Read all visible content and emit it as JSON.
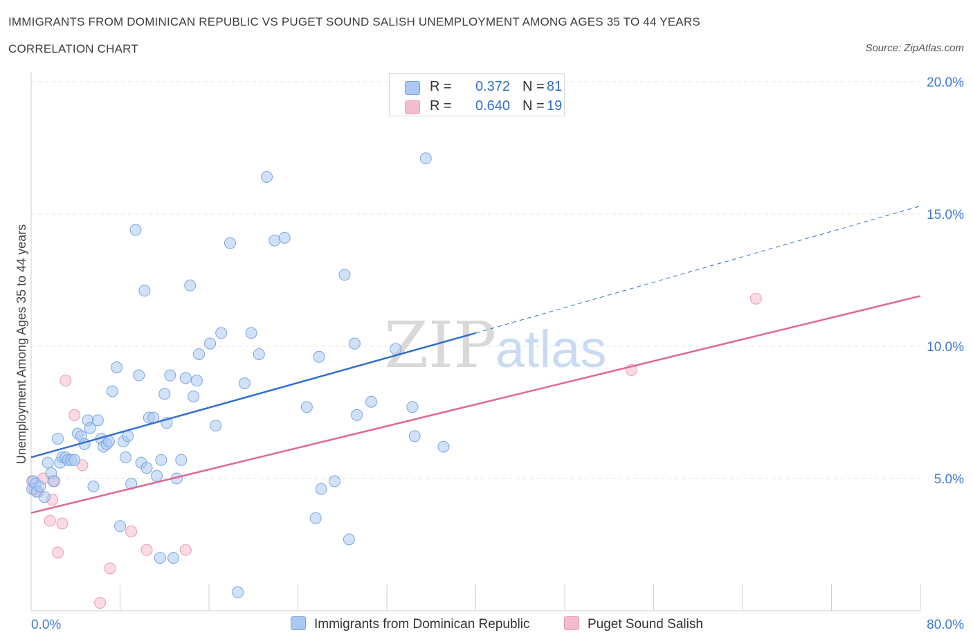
{
  "header": {
    "title": "IMMIGRANTS FROM DOMINICAN REPUBLIC VS PUGET SOUND SALISH UNEMPLOYMENT AMONG AGES 35 TO 44 YEARS",
    "subtitle": "CORRELATION CHART",
    "source": "Source: ZipAtlas.com"
  },
  "legend_top": {
    "rows": [
      {
        "r_label": "R =",
        "r_value": "0.372",
        "n_label": "N =",
        "n_value": "81"
      },
      {
        "r_label": "R =",
        "r_value": "0.640",
        "n_label": "N =",
        "n_value": "19"
      }
    ]
  },
  "legend_bottom": {
    "items": [
      {
        "label": "Immigrants from Dominican Republic"
      },
      {
        "label": "Puget Sound Salish"
      }
    ]
  },
  "watermark": {
    "part1": "ZIP",
    "part2": "atlas"
  },
  "colors": {
    "blue_fill": "#a9c8f2",
    "blue_stroke": "#7aa6e0",
    "blue_line": "#2f6fd0",
    "pink_fill": "#f5bcd0",
    "pink_stroke": "#ea9ab6",
    "pink_line": "#e06891",
    "grid": "#e0e0e0",
    "axis_text": "#3b78d0"
  },
  "chart_data": {
    "type": "scatter",
    "title": "IMMIGRANTS FROM DOMINICAN REPUBLIC VS PUGET SOUND SALISH UNEMPLOYMENT AMONG AGES 35 TO 44 YEARS",
    "xlabel": "",
    "ylabel": "Unemployment Among Ages 35 to 44 years",
    "xlim": [
      0,
      80
    ],
    "ylim": [
      0,
      20
    ],
    "x_tick_labels": [
      "0.0%",
      "80.0%"
    ],
    "y_ticks": [
      5,
      10,
      15,
      20
    ],
    "y_tick_labels": [
      "5.0%",
      "10.0%",
      "15.0%",
      "20.0%"
    ],
    "grid": true,
    "legend_placement": "top-center",
    "series": [
      {
        "name": "Immigrants from Dominican Republic",
        "color": "#a9c8f2",
        "points": [
          [
            0.1,
            4.6
          ],
          [
            0.2,
            4.9
          ],
          [
            0.4,
            4.8
          ],
          [
            0.5,
            4.5
          ],
          [
            0.8,
            4.7
          ],
          [
            1.2,
            4.3
          ],
          [
            1.5,
            5.6
          ],
          [
            1.8,
            5.2
          ],
          [
            2.0,
            4.9
          ],
          [
            2.4,
            6.5
          ],
          [
            2.6,
            5.6
          ],
          [
            2.8,
            5.8
          ],
          [
            3.1,
            5.8
          ],
          [
            3.3,
            5.7
          ],
          [
            3.6,
            5.7
          ],
          [
            3.9,
            5.7
          ],
          [
            4.2,
            6.7
          ],
          [
            4.5,
            6.6
          ],
          [
            4.8,
            6.3
          ],
          [
            5.1,
            7.2
          ],
          [
            5.3,
            6.9
          ],
          [
            5.6,
            4.7
          ],
          [
            6.0,
            7.2
          ],
          [
            6.3,
            6.5
          ],
          [
            6.5,
            6.2
          ],
          [
            6.8,
            6.3
          ],
          [
            7.0,
            6.4
          ],
          [
            7.3,
            8.3
          ],
          [
            7.7,
            9.2
          ],
          [
            8.0,
            3.2
          ],
          [
            8.3,
            6.4
          ],
          [
            8.5,
            5.8
          ],
          [
            8.7,
            6.6
          ],
          [
            9.0,
            4.8
          ],
          [
            9.4,
            14.4
          ],
          [
            9.7,
            8.9
          ],
          [
            9.9,
            5.6
          ],
          [
            10.2,
            12.1
          ],
          [
            10.4,
            5.4
          ],
          [
            10.6,
            7.3
          ],
          [
            11.0,
            7.3
          ],
          [
            11.3,
            5.1
          ],
          [
            11.6,
            2.0
          ],
          [
            11.7,
            5.7
          ],
          [
            12.0,
            8.2
          ],
          [
            12.2,
            7.1
          ],
          [
            12.5,
            8.9
          ],
          [
            12.8,
            2.0
          ],
          [
            13.1,
            5.0
          ],
          [
            13.5,
            5.7
          ],
          [
            13.9,
            8.8
          ],
          [
            14.3,
            12.3
          ],
          [
            14.6,
            8.1
          ],
          [
            14.9,
            8.7
          ],
          [
            15.1,
            9.7
          ],
          [
            16.1,
            10.1
          ],
          [
            16.6,
            7.0
          ],
          [
            17.1,
            10.5
          ],
          [
            17.9,
            13.9
          ],
          [
            18.6,
            0.7
          ],
          [
            19.2,
            8.6
          ],
          [
            19.8,
            10.5
          ],
          [
            20.5,
            9.7
          ],
          [
            21.2,
            16.4
          ],
          [
            21.9,
            14.0
          ],
          [
            22.8,
            14.1
          ],
          [
            24.8,
            7.7
          ],
          [
            25.6,
            3.5
          ],
          [
            25.9,
            9.6
          ],
          [
            26.1,
            4.6
          ],
          [
            27.3,
            4.9
          ],
          [
            28.2,
            12.7
          ],
          [
            28.6,
            2.7
          ],
          [
            29.1,
            10.1
          ],
          [
            29.3,
            7.4
          ],
          [
            30.6,
            7.9
          ],
          [
            32.8,
            9.9
          ],
          [
            34.3,
            7.7
          ],
          [
            34.5,
            6.6
          ],
          [
            35.5,
            17.1
          ],
          [
            37.1,
            6.2
          ]
        ]
      },
      {
        "name": "Puget Sound Salish",
        "color": "#f5bcd0",
        "points": [
          [
            0.1,
            4.9
          ],
          [
            0.6,
            4.5
          ],
          [
            1.1,
            5.0
          ],
          [
            1.7,
            3.4
          ],
          [
            1.9,
            4.2
          ],
          [
            2.1,
            4.9
          ],
          [
            2.4,
            2.2
          ],
          [
            2.8,
            3.3
          ],
          [
            3.1,
            8.7
          ],
          [
            3.9,
            7.4
          ],
          [
            4.6,
            5.5
          ],
          [
            6.2,
            0.3
          ],
          [
            7.1,
            1.6
          ],
          [
            9.0,
            3.0
          ],
          [
            10.4,
            2.3
          ],
          [
            13.9,
            2.3
          ],
          [
            54.0,
            9.1
          ],
          [
            65.2,
            11.8
          ],
          [
            0.3,
            4.6
          ]
        ]
      }
    ],
    "trendlines": [
      {
        "series": "Immigrants from Dominican Republic",
        "x": [
          0,
          40,
          80
        ],
        "y": [
          5.8,
          10.5,
          15.3
        ],
        "solid_until": 40
      },
      {
        "series": "Puget Sound Salish",
        "x": [
          0,
          80
        ],
        "y": [
          3.7,
          11.9
        ]
      }
    ]
  }
}
